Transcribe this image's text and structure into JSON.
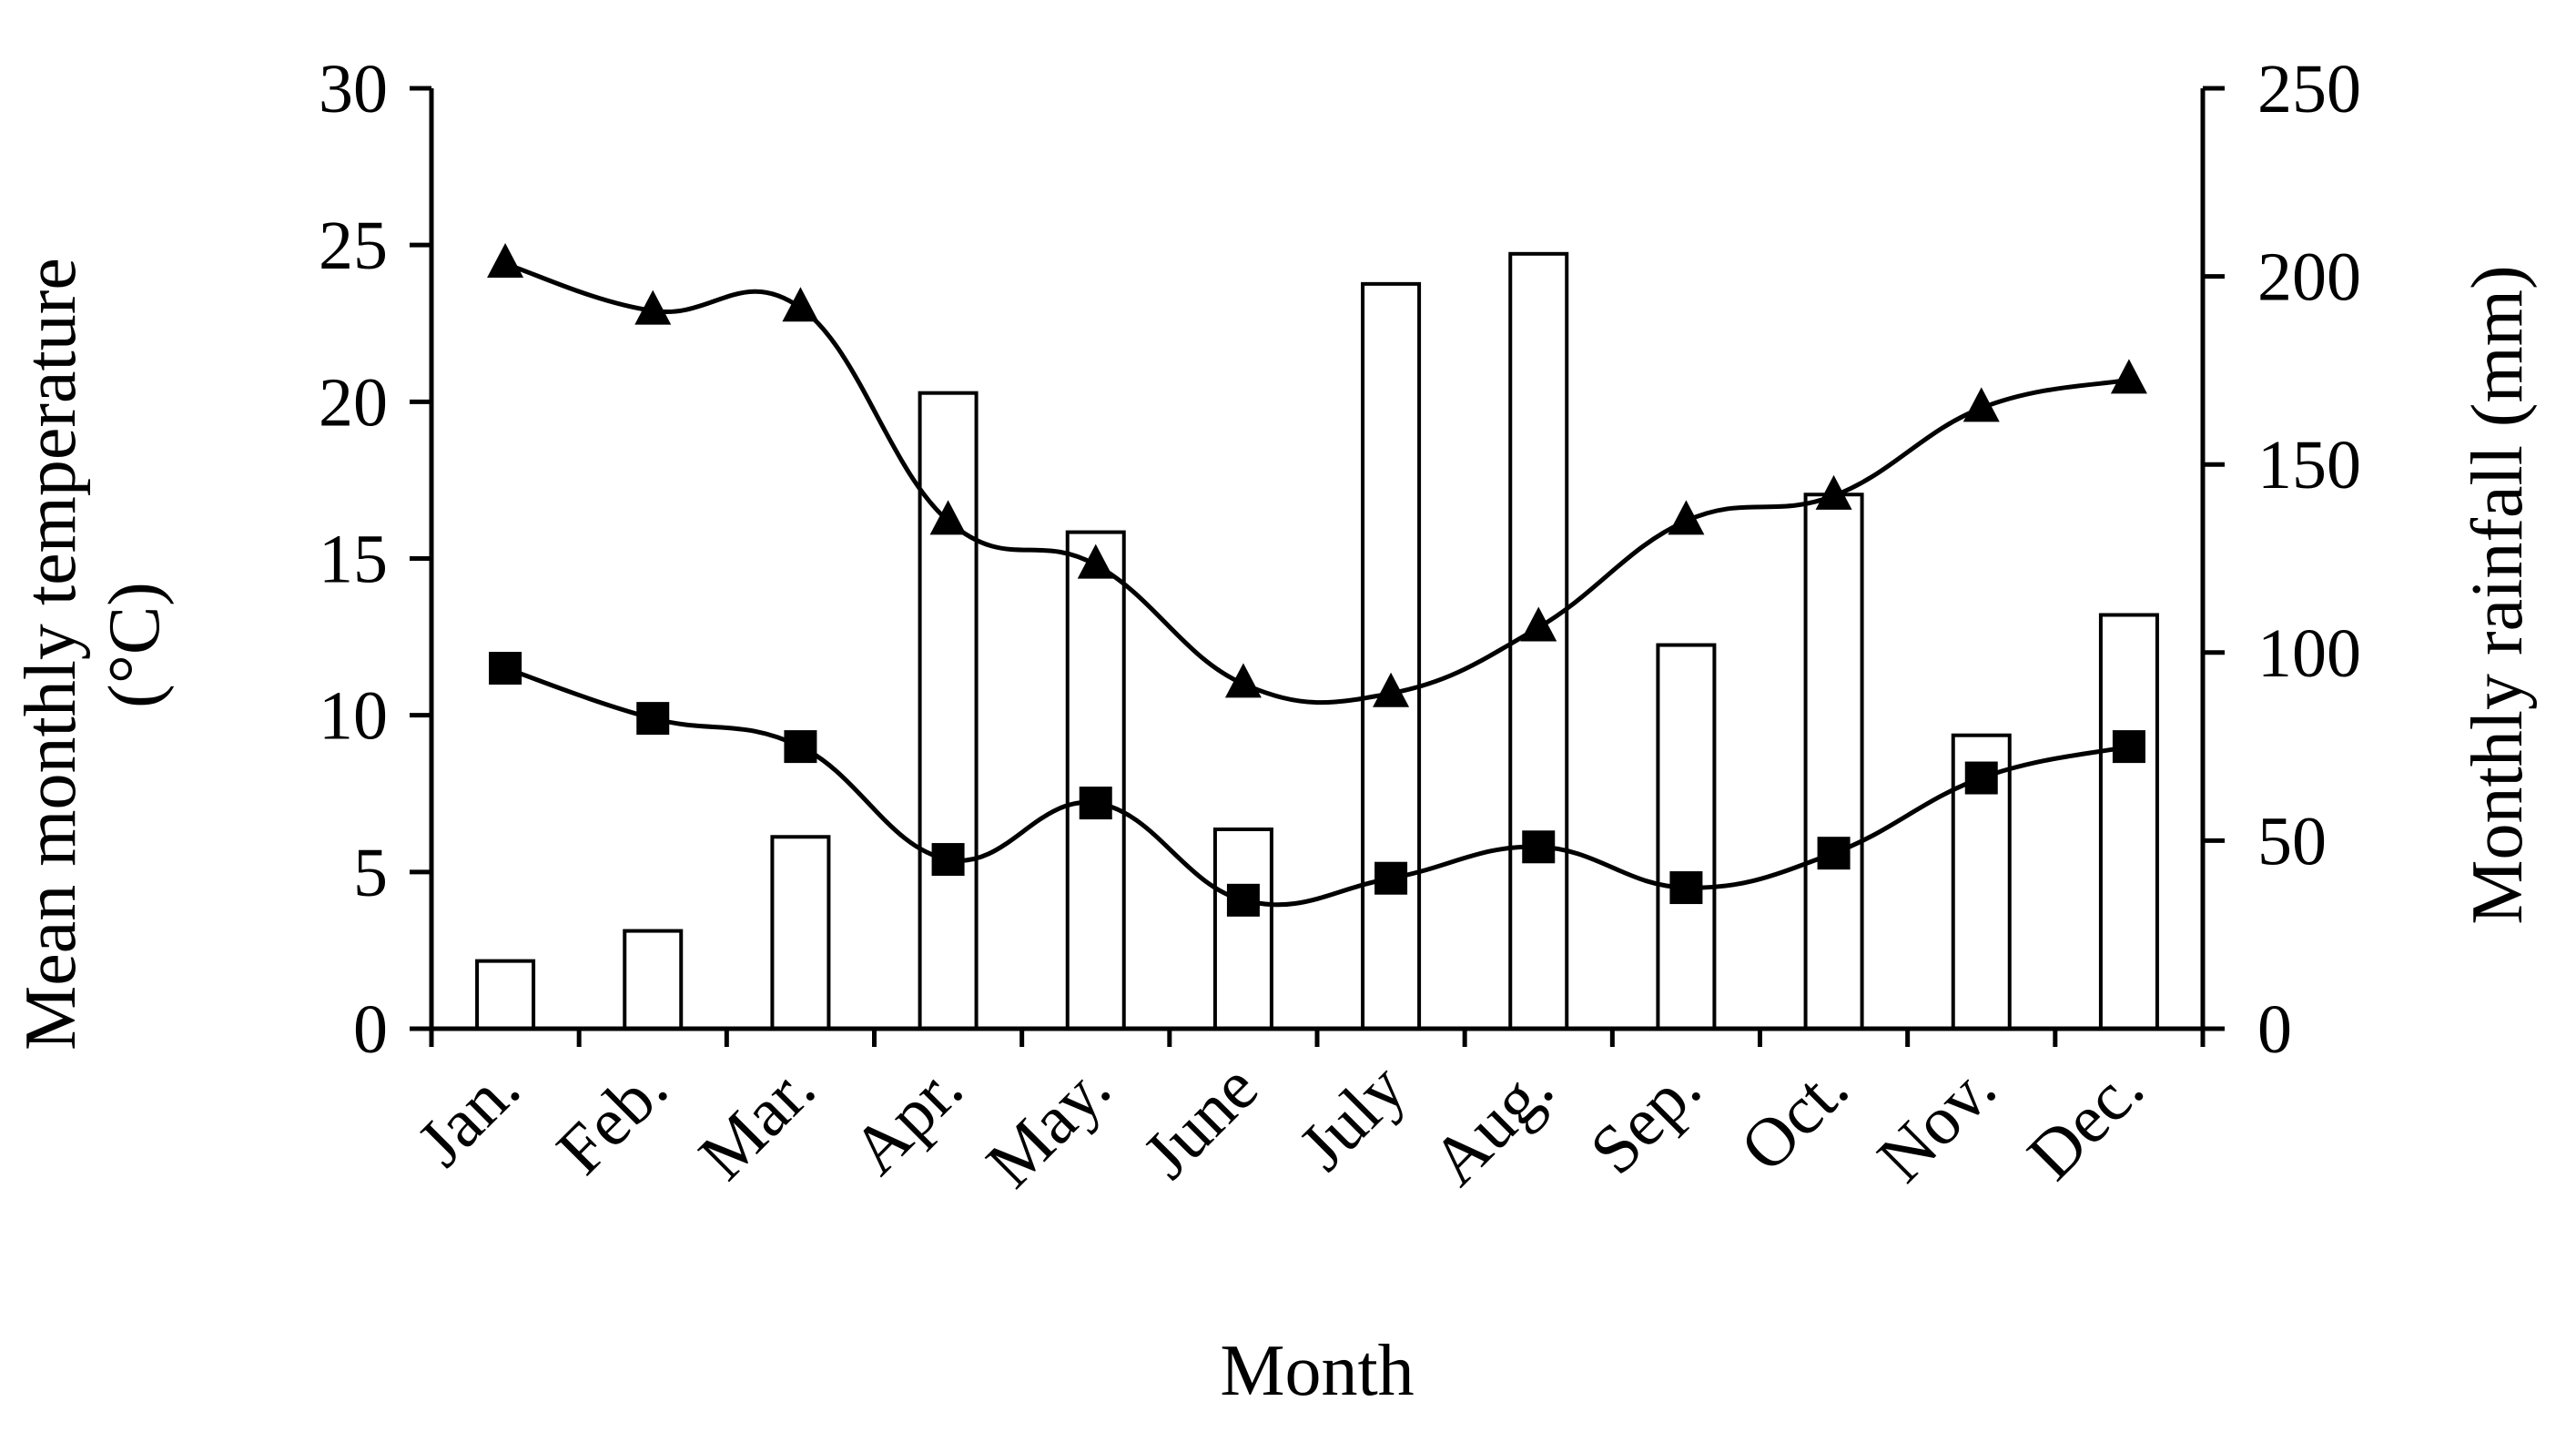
{
  "chart_data": {
    "type": "bar+line",
    "categories": [
      "Jan.",
      "Feb.",
      "Mar.",
      "Apr.",
      "May.",
      "June",
      "July",
      "Aug.",
      "Sep.",
      "Oct.",
      "Nov.",
      "Dec."
    ],
    "xlabel": "Month",
    "ylabel_left": "Mean monthly temperature (°C)",
    "ylabel_left_lines": [
      "Mean monthly temperature",
      "(°C)"
    ],
    "ylabel_right": "Monthly rainfall (mm)",
    "ylim_left": [
      0,
      30
    ],
    "yticks_left": [
      0,
      5,
      10,
      15,
      20,
      25,
      30
    ],
    "ylim_right": [
      0,
      250
    ],
    "yticks_right": [
      0,
      50,
      100,
      150,
      200,
      250
    ],
    "grid": false,
    "legend": "none",
    "bars": {
      "axis": "right",
      "style": "hollow",
      "values": [
        18,
        26,
        51,
        169,
        132,
        53,
        198,
        206,
        102,
        142,
        78,
        110
      ]
    },
    "series": [
      {
        "marker": "triangle",
        "axis": "left",
        "values": [
          24.4,
          22.9,
          23.0,
          16.2,
          14.8,
          11.0,
          10.7,
          12.8,
          16.2,
          17.0,
          19.8,
          20.7
        ]
      },
      {
        "marker": "square",
        "axis": "left",
        "values": [
          11.5,
          9.9,
          9.0,
          5.4,
          7.2,
          4.1,
          4.8,
          5.8,
          4.5,
          5.6,
          8.0,
          9.0
        ]
      }
    ],
    "colors": {
      "line": "#000000",
      "bar_fill": "#ffffff",
      "bar_stroke": "#000000"
    }
  }
}
